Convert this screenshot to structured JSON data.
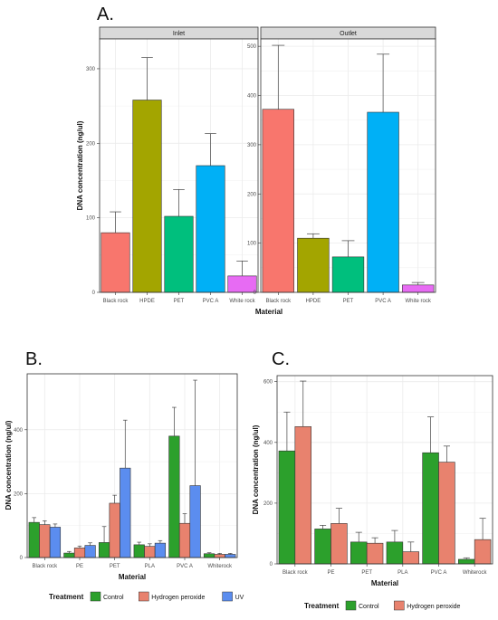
{
  "colors": {
    "black_rock": "#F8766D",
    "hpde": "#A3A500",
    "pet": "#00BF7D",
    "pvca": "#00B0F6",
    "white_rock": "#E76BF3",
    "control": "#2CA02C",
    "hydrogen_peroxide": "#E8826E",
    "uv": "#5B8DEF",
    "grid": "#EBEBEB",
    "strip_bg": "#D9D9D9"
  },
  "chart_data": [
    {
      "panel": "A.",
      "type": "bar",
      "xlabel": "Material",
      "ylabel": "DNA concentration (ng/ul)",
      "grid": true,
      "facets": [
        {
          "strip": "Inlet",
          "categories": [
            "Black rock",
            "HPDE",
            "PET",
            "PVC A",
            "White rock"
          ],
          "values": [
            80,
            258,
            102,
            170,
            22
          ],
          "errors": [
            28,
            57,
            36,
            43,
            20
          ],
          "ylim": [
            0,
            340
          ],
          "yticks": [
            "0",
            "100",
            "200",
            "300"
          ],
          "ytick_values": [
            0,
            100,
            200,
            300
          ],
          "bar_colors": [
            "black_rock",
            "hpde",
            "pet",
            "pvca",
            "white_rock"
          ]
        },
        {
          "strip": "Outlet",
          "categories": [
            "Black rock",
            "HPDE",
            "PET",
            "PVC A",
            "White rock"
          ],
          "values": [
            372,
            110,
            72,
            366,
            15
          ],
          "errors": [
            130,
            9,
            33,
            118,
            5
          ],
          "ylim": [
            0,
            515
          ],
          "yticks": [
            "0",
            "100",
            "200",
            "300",
            "400",
            "500"
          ],
          "ytick_values": [
            0,
            100,
            200,
            300,
            400,
            500
          ],
          "bar_colors": [
            "black_rock",
            "hpde",
            "pet",
            "pvca",
            "white_rock"
          ]
        }
      ]
    },
    {
      "panel": "B.",
      "type": "bar",
      "xlabel": "Material",
      "ylabel": "DNA concentration (ng/ul)",
      "grid": true,
      "legend_title": "Treatment",
      "legend_position": "bottom",
      "categories": [
        "Black rock",
        "PE",
        "PET",
        "PLA",
        "PVC A",
        "Whiterock"
      ],
      "series": [
        {
          "name": "Control",
          "color": "control",
          "values": [
            110,
            14,
            47,
            40,
            380,
            12
          ],
          "errors": [
            15,
            5,
            50,
            8,
            90,
            3
          ]
        },
        {
          "name": "Hydrogen peroxide",
          "color": "hydrogen_peroxide",
          "values": [
            103,
            30,
            170,
            35,
            107,
            10
          ],
          "errors": [
            12,
            6,
            25,
            8,
            30,
            3
          ]
        },
        {
          "name": "UV",
          "color": "uv",
          "values": [
            95,
            38,
            280,
            45,
            225,
            10
          ],
          "errors": [
            10,
            8,
            150,
            8,
            330,
            3
          ]
        }
      ],
      "ylim": [
        0,
        575
      ],
      "yticks": [
        "0",
        "200",
        "400"
      ],
      "ytick_values": [
        0,
        200,
        400
      ]
    },
    {
      "panel": "C.",
      "type": "bar",
      "xlabel": "Material",
      "ylabel": "DNA concentration (ng/ul)",
      "grid": true,
      "legend_title": "Treatment",
      "legend_position": "bottom",
      "categories": [
        "Black rock",
        "PE",
        "PET",
        "PLA",
        "PVC A",
        "Whiterock"
      ],
      "series": [
        {
          "name": "Control",
          "color": "control",
          "values": [
            372,
            115,
            72,
            72,
            366,
            15
          ],
          "errors": [
            128,
            12,
            32,
            38,
            118,
            5
          ]
        },
        {
          "name": "Hydrogen peroxide",
          "color": "hydrogen_peroxide",
          "values": [
            452,
            133,
            68,
            40,
            335,
            80
          ],
          "errors": [
            150,
            50,
            18,
            32,
            53,
            70
          ]
        }
      ],
      "ylim": [
        0,
        620
      ],
      "yticks": [
        "0",
        "200",
        "400",
        "600"
      ],
      "ytick_values": [
        0,
        200,
        400,
        600
      ]
    }
  ]
}
